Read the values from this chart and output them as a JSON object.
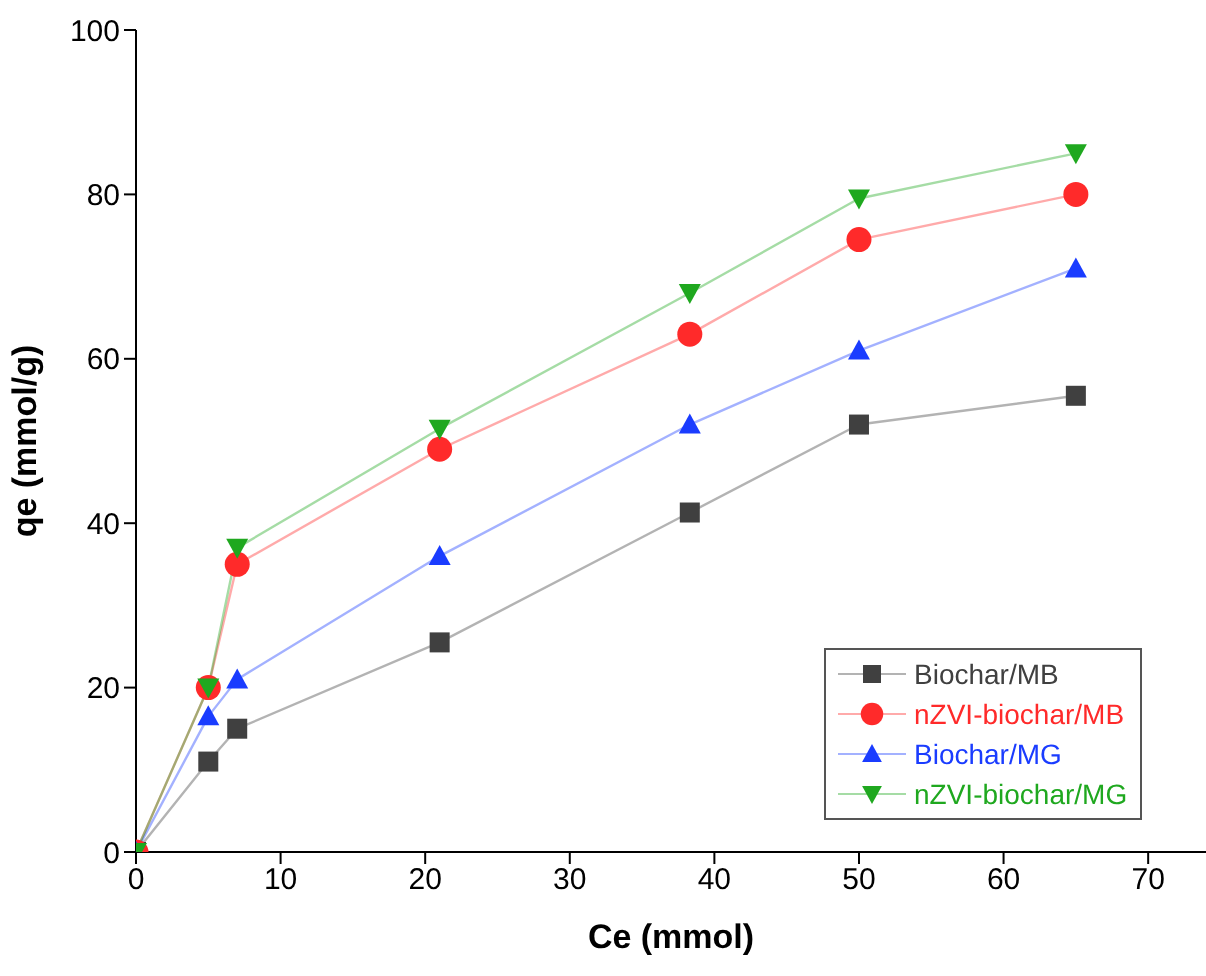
{
  "chart_data": {
    "type": "line",
    "xlabel": "Ce (mmol)",
    "ylabel": "qe (mmol/g)",
    "x": [
      0,
      5,
      7,
      21,
      38.3,
      50,
      65
    ],
    "series": [
      {
        "name": "Biochar/MB",
        "color": "#404040",
        "marker": "square",
        "values": [
          0,
          11,
          15,
          25.5,
          41.3,
          52,
          55.5
        ]
      },
      {
        "name": "nZVI-biochar/MB",
        "color": "#ff2a2a",
        "marker": "circle",
        "values": [
          0,
          20,
          35,
          49,
          63,
          74.5,
          80
        ]
      },
      {
        "name": "Biochar/MG",
        "color": "#1a3cff",
        "marker": "triangle",
        "values": [
          0,
          16.5,
          21,
          36,
          52,
          61,
          71
        ]
      },
      {
        "name": "nZVI-biochar/MG",
        "color": "#1fa81f",
        "marker": "triangle-down",
        "values": [
          0,
          20,
          37,
          51.5,
          68,
          79.5,
          85
        ]
      }
    ],
    "xlim": [
      0,
      74
    ],
    "xticks": [
      0,
      10,
      20,
      30,
      40,
      50,
      60,
      70
    ],
    "ylim": [
      0,
      100
    ],
    "yticks": [
      0,
      20,
      40,
      60,
      80,
      100
    ],
    "grid": false,
    "legend": "bottom right"
  }
}
